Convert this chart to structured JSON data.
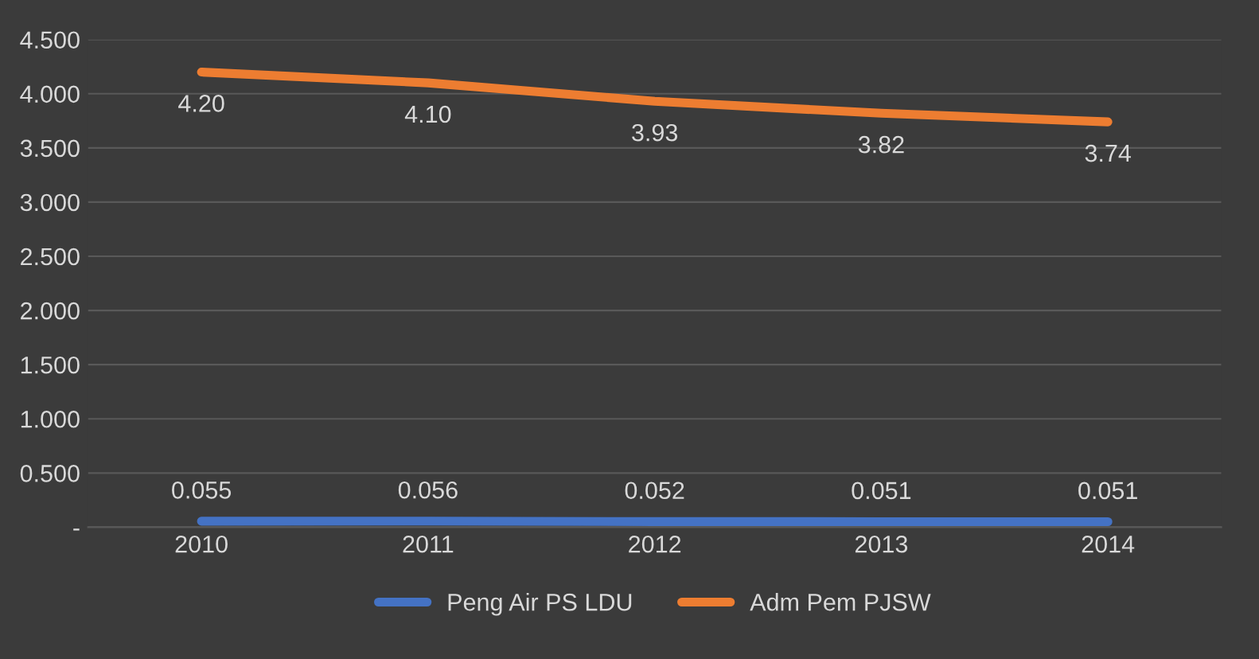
{
  "chart_data": {
    "type": "line",
    "categories": [
      "2010",
      "2011",
      "2012",
      "2013",
      "2014"
    ],
    "series": [
      {
        "name": "Peng Air PS LDU",
        "color": "#4472c4",
        "values": [
          0.055,
          0.056,
          0.052,
          0.051,
          0.051
        ],
        "value_labels": [
          "0.055",
          "0.056",
          "0.052",
          "0.051",
          "0.051"
        ]
      },
      {
        "name": "Adm Pem PJSW",
        "color": "#ed7d31",
        "values": [
          4.2,
          4.1,
          3.93,
          3.82,
          3.74
        ],
        "value_labels": [
          "4.20",
          "4.10",
          "3.93",
          "3.82",
          "3.74"
        ]
      }
    ],
    "ylim": [
      0,
      4.5
    ],
    "yticks": [
      {
        "value": 0,
        "label": "-"
      },
      {
        "value": 0.5,
        "label": "0.500"
      },
      {
        "value": 1,
        "label": "1.000"
      },
      {
        "value": 1.5,
        "label": "1.500"
      },
      {
        "value": 2,
        "label": "2.000"
      },
      {
        "value": 2.5,
        "label": "2.500"
      },
      {
        "value": 3,
        "label": "3.000"
      },
      {
        "value": 3.5,
        "label": "3.500"
      },
      {
        "value": 4,
        "label": "4.000"
      },
      {
        "value": 4.5,
        "label": "4.500"
      }
    ],
    "grid": "y",
    "legend": "bottom",
    "marker": "none",
    "line_style": "solid"
  }
}
